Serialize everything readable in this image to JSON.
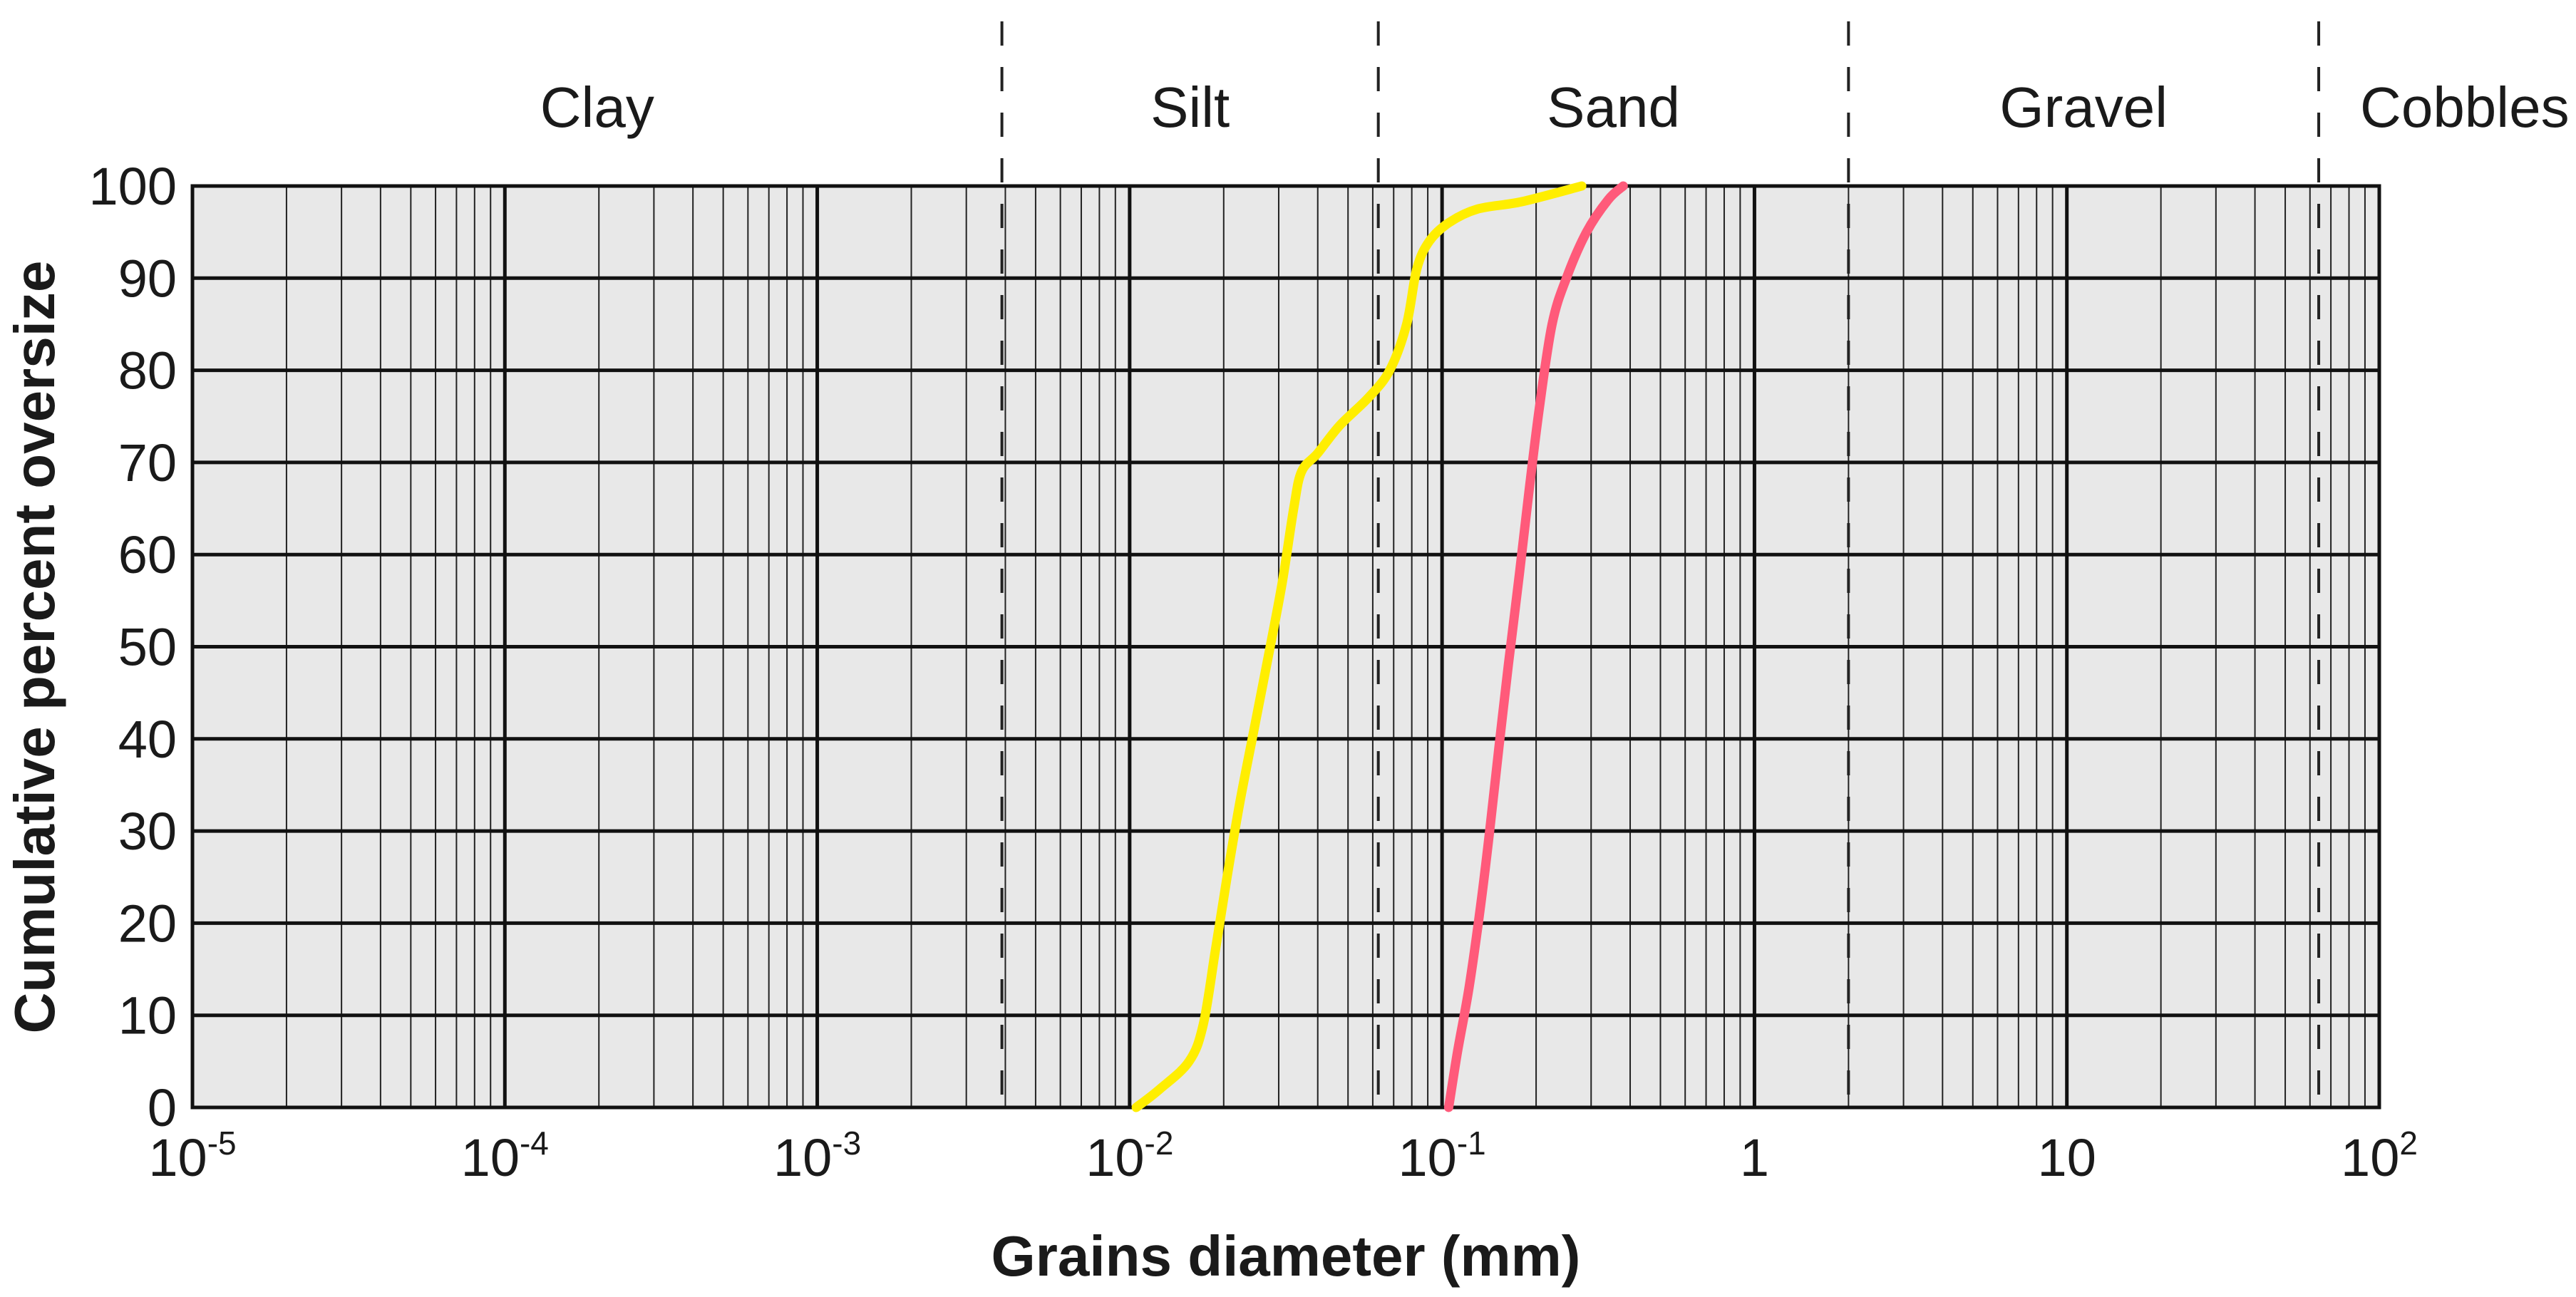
{
  "chart_data": {
    "type": "line",
    "xscale": "log",
    "xlim": [
      1e-05,
      100
    ],
    "ylim": [
      0,
      100
    ],
    "xlabel": "Grains diameter (mm)",
    "ylabel": "Cumulative percent oversize",
    "grid": true,
    "plot_background": "#e8e8e8",
    "x_ticks": [
      {
        "value": 1e-05,
        "base": "10",
        "exp": "-5"
      },
      {
        "value": 0.0001,
        "base": "10",
        "exp": "-4"
      },
      {
        "value": 0.001,
        "base": "10",
        "exp": "-3"
      },
      {
        "value": 0.01,
        "base": "10",
        "exp": "-2"
      },
      {
        "value": 0.1,
        "base": "10",
        "exp": "-1"
      },
      {
        "value": 1,
        "base": "1",
        "exp": ""
      },
      {
        "value": 10,
        "base": "10",
        "exp": ""
      },
      {
        "value": 100,
        "base": "10",
        "exp": "2"
      }
    ],
    "y_ticks": [
      0,
      10,
      20,
      30,
      40,
      50,
      60,
      70,
      80,
      90,
      100
    ],
    "size_classes": [
      {
        "label": "Clay",
        "from": 1e-05,
        "to": 0.0039
      },
      {
        "label": "Silt",
        "from": 0.0039,
        "to": 0.0625
      },
      {
        "label": "Sand",
        "from": 0.0625,
        "to": 2
      },
      {
        "label": "Gravel",
        "from": 2,
        "to": 64
      },
      {
        "label": "Cobbles",
        "from": 64,
        "to": 100
      }
    ],
    "class_boundaries": [
      0.0039,
      0.0625,
      2,
      64
    ],
    "series": [
      {
        "color": "#ffee00",
        "points": [
          [
            0.0105,
            0
          ],
          [
            0.0125,
            2
          ],
          [
            0.0155,
            5
          ],
          [
            0.0172,
            9
          ],
          [
            0.0188,
            17
          ],
          [
            0.0205,
            25
          ],
          [
            0.0225,
            33
          ],
          [
            0.025,
            41
          ],
          [
            0.0278,
            49
          ],
          [
            0.0308,
            57
          ],
          [
            0.0335,
            65
          ],
          [
            0.0355,
            69
          ],
          [
            0.04,
            71
          ],
          [
            0.047,
            74
          ],
          [
            0.058,
            77
          ],
          [
            0.068,
            80
          ],
          [
            0.077,
            85
          ],
          [
            0.083,
            91
          ],
          [
            0.091,
            94
          ],
          [
            0.105,
            96
          ],
          [
            0.13,
            97.5
          ],
          [
            0.18,
            98.3
          ],
          [
            0.28,
            100
          ]
        ]
      },
      {
        "color": "#ff5a7a",
        "points": [
          [
            0.105,
            0
          ],
          [
            0.112,
            6
          ],
          [
            0.122,
            13
          ],
          [
            0.133,
            22
          ],
          [
            0.142,
            30
          ],
          [
            0.152,
            39
          ],
          [
            0.163,
            48
          ],
          [
            0.177,
            58
          ],
          [
            0.19,
            67
          ],
          [
            0.205,
            76
          ],
          [
            0.225,
            85
          ],
          [
            0.25,
            90
          ],
          [
            0.29,
            95
          ],
          [
            0.34,
            98.5
          ],
          [
            0.38,
            100
          ]
        ]
      }
    ]
  }
}
